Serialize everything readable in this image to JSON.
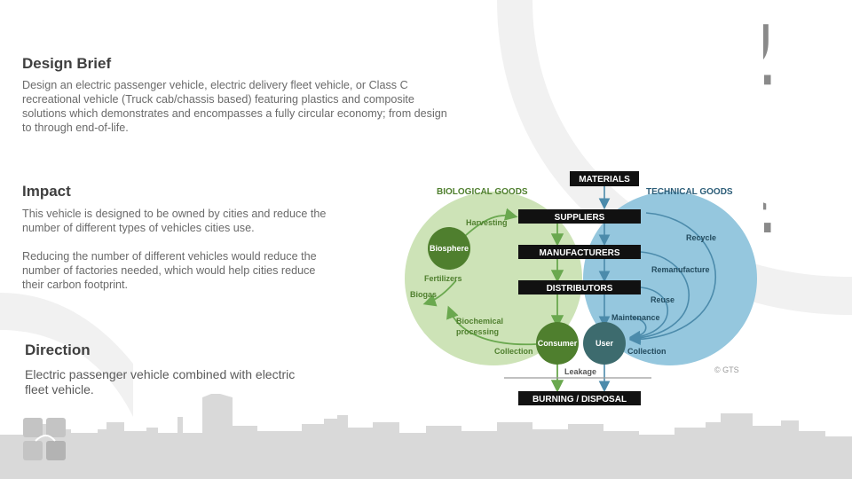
{
  "slide": {
    "vertical_title": "Direction",
    "sections": {
      "design_brief": {
        "heading": "Design Brief",
        "lines": [
          "Design an electric passenger vehicle, electric delivery fleet vehicle, or Class C",
          "recreational vehicle (Truck cab/chassis based) featuring plastics and composite",
          "solutions which demonstrates and encompasses a fully circular economy; from design",
          "to through end-of-life."
        ]
      },
      "impact": {
        "heading": "Impact",
        "para1_lines": [
          "This vehicle is designed to be owned by cities and reduce the",
          "number of different types of vehicles cities use."
        ],
        "para2_lines": [
          "Reducing the number of different vehicles would reduce the",
          "number of factories needed, which would help cities reduce",
          "their carbon footprint."
        ]
      },
      "direction": {
        "heading": "Direction",
        "lines": [
          "Electric passenger vehicle combined with electric",
          "fleet vehicle."
        ]
      }
    }
  },
  "diagram": {
    "labels": {
      "biological": "BIOLOGICAL GOODS",
      "technical": "TECHNICAL GOODS",
      "materials": "MATERIALS",
      "suppliers": "SUPPLIERS",
      "manufacturers": "MANUFACTURERS",
      "distributors": "DISTRIBUTORS",
      "burning": "BURNING / DISPOSAL",
      "biosphere": "Biosphere",
      "consumer": "Consumer",
      "user": "User",
      "harvesting": "Harvesting",
      "fertilizers": "Fertilizers",
      "biogas": "Biogas",
      "biochemical1": "Biochemical",
      "biochemical2": "processing",
      "collection_left": "Collection",
      "collection_right": "Collection",
      "leakage": "Leakage",
      "recycle": "Recycle",
      "remanufacture": "Remanufacture",
      "reuse": "Reuse",
      "maintenance": "Maintenance",
      "copyright": "© GTS"
    },
    "colors": {
      "green_light": "#cde3b7",
      "green_dark": "#4f7f2e",
      "green_arrow": "#6aa84f",
      "blue_light": "#8fc4dc",
      "teal_dark": "#3d6b6e",
      "blue_arrow": "#4c8bab",
      "black_box": "#111111"
    }
  }
}
